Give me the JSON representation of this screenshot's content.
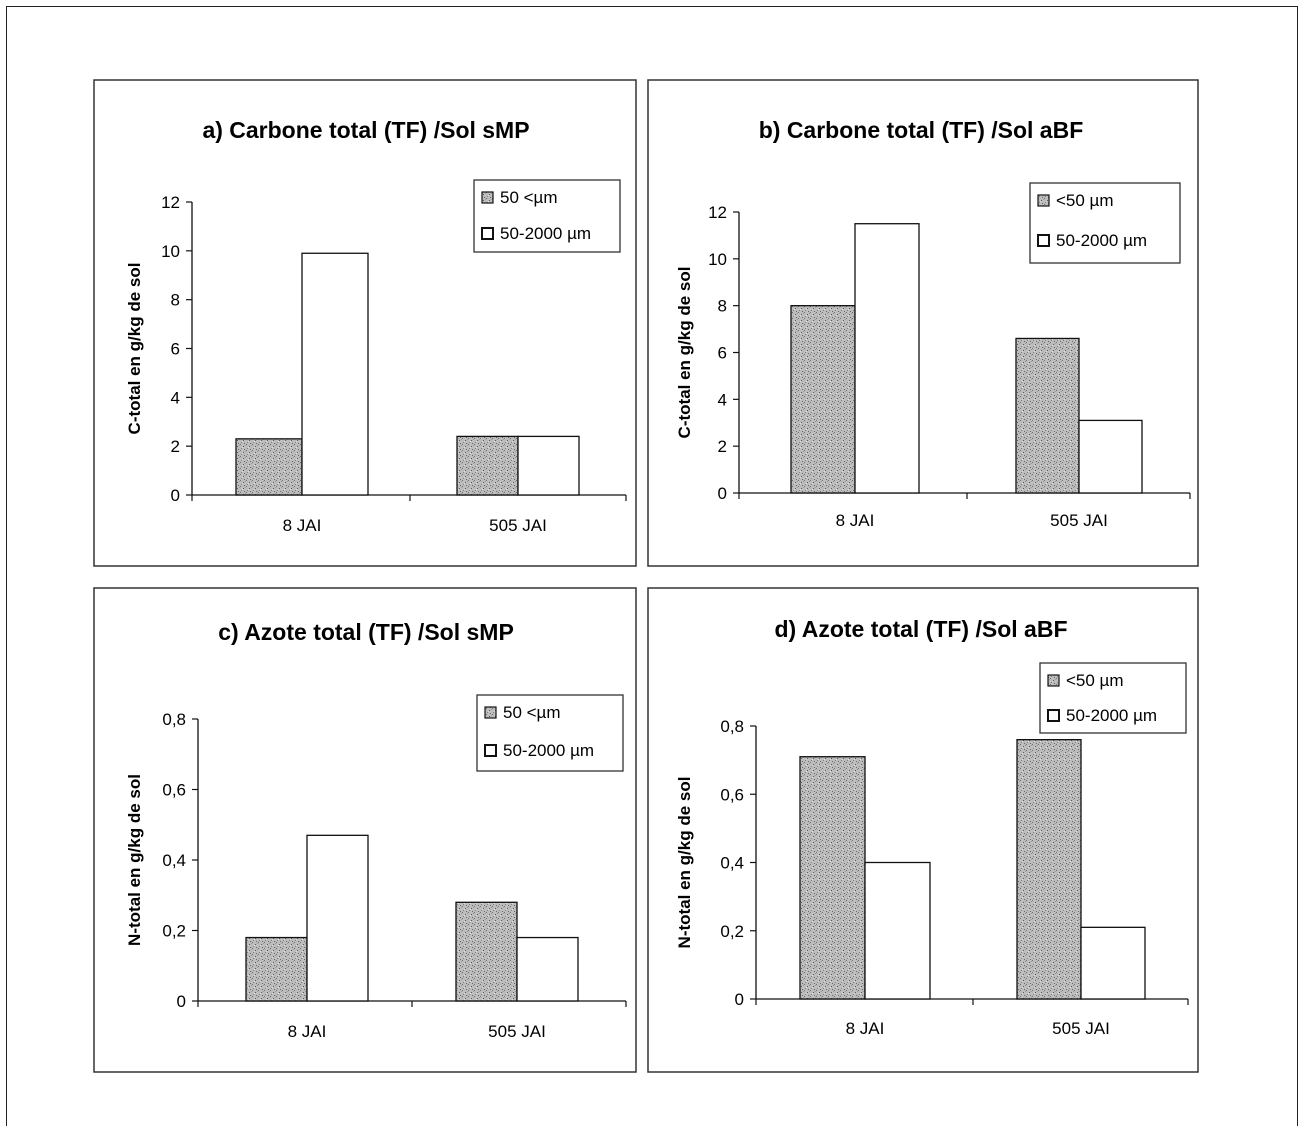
{
  "colors": {
    "fine_fraction_fill": "#bdbdbd",
    "coarse_fraction_fill": "#ffffff",
    "frame": "#333333",
    "axis": "#111111"
  },
  "chart_data": [
    {
      "id": "a",
      "type": "bar",
      "title": "a) Carbone total (TF) /Sol sMP",
      "ylabel": "C-total en g/kg de sol",
      "xlabel": "",
      "categories": [
        "8 JAI",
        "505 JAI"
      ],
      "ylim": [
        0,
        12
      ],
      "yticks": [
        0,
        2,
        4,
        6,
        8,
        10,
        12
      ],
      "ytick_labels": [
        "0",
        "2",
        "4",
        "6",
        "8",
        "10",
        "12"
      ],
      "series": [
        {
          "name": "50 <µm",
          "values": [
            2.3,
            2.4
          ]
        },
        {
          "name": "50-2000 µm",
          "values": [
            9.9,
            2.4
          ]
        }
      ],
      "legend_position": "top-right",
      "grid": false
    },
    {
      "id": "b",
      "type": "bar",
      "title": "b) Carbone total (TF) /Sol aBF",
      "ylabel": "C-total en g/kg de sol",
      "xlabel": "",
      "categories": [
        "8 JAI",
        "505 JAI"
      ],
      "ylim": [
        0,
        12
      ],
      "yticks": [
        0,
        2,
        4,
        6,
        8,
        10,
        12
      ],
      "ytick_labels": [
        "0",
        "2",
        "4",
        "6",
        "8",
        "10",
        "12"
      ],
      "series": [
        {
          "name": "<50 µm",
          "values": [
            8.0,
            6.6
          ]
        },
        {
          "name": "50-2000 µm",
          "values": [
            11.5,
            3.1
          ]
        }
      ],
      "legend_position": "top-right",
      "grid": false
    },
    {
      "id": "c",
      "type": "bar",
      "title": "c) Azote total (TF) /Sol sMP",
      "ylabel": "N-total en g/kg de sol",
      "xlabel": "",
      "categories": [
        "8 JAI",
        "505 JAI"
      ],
      "ylim": [
        0,
        0.8
      ],
      "yticks": [
        0,
        0.2,
        0.4,
        0.6,
        0.8
      ],
      "ytick_labels": [
        "0",
        "0,2",
        "0,4",
        "0,6",
        "0,8"
      ],
      "series": [
        {
          "name": "50 <µm",
          "values": [
            0.18,
            0.28
          ]
        },
        {
          "name": "50-2000 µm",
          "values": [
            0.47,
            0.18
          ]
        }
      ],
      "legend_position": "top-right",
      "grid": false
    },
    {
      "id": "d",
      "type": "bar",
      "title": "d) Azote total (TF) /Sol aBF",
      "ylabel": "N-total en g/kg de sol",
      "xlabel": "",
      "categories": [
        "8 JAI",
        "505 JAI"
      ],
      "ylim": [
        0,
        0.8
      ],
      "yticks": [
        0,
        0.2,
        0.4,
        0.6,
        0.8
      ],
      "ytick_labels": [
        "0",
        "0,2",
        "0,4",
        "0,6",
        "0,8"
      ],
      "series": [
        {
          "name": "<50 µm",
          "values": [
            0.71,
            0.76
          ]
        },
        {
          "name": "50-2000 µm",
          "values": [
            0.4,
            0.21
          ]
        }
      ],
      "legend_position": "top-right",
      "grid": false
    }
  ]
}
